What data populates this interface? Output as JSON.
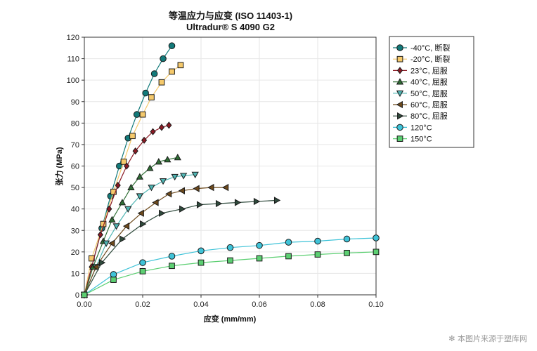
{
  "chart_data": {
    "type": "line",
    "title": "等温应力与应变 (ISO 11403-1)",
    "subtitle": "Ultradur® S 4090 G2",
    "xlabel": "应变 (mm/mm)",
    "ylabel": "张力 (MPa)",
    "xlim": [
      0,
      0.1
    ],
    "ylim": [
      0,
      120
    ],
    "xticks": [
      "0.00",
      "0.02",
      "0.04",
      "0.06",
      "0.08",
      "0.10"
    ],
    "yticks": [
      "0",
      "10",
      "20",
      "30",
      "40",
      "50",
      "60",
      "70",
      "80",
      "90",
      "100",
      "110",
      "120"
    ],
    "grid": true,
    "legend_position": "right",
    "series": [
      {
        "name": "-40°C, 断裂",
        "color": "#127a7a",
        "marker": "circle",
        "x": [
          0,
          0.006,
          0.009,
          0.012,
          0.015,
          0.018,
          0.021,
          0.024,
          0.027,
          0.03
        ],
        "y": [
          0,
          31,
          46,
          60,
          73,
          84,
          94,
          103,
          110,
          116
        ]
      },
      {
        "name": "-20°C, 断裂",
        "color": "#f5c96b",
        "marker": "square",
        "x": [
          0,
          0.0025,
          0.0065,
          0.01,
          0.0135,
          0.0165,
          0.02,
          0.023,
          0.0265,
          0.03,
          0.033
        ],
        "y": [
          0,
          17,
          33,
          48,
          62,
          74,
          84,
          92,
          99,
          104,
          107
        ]
      },
      {
        "name": "23°C, 屈服",
        "color": "#8b1a24",
        "marker": "diamond",
        "x": [
          0,
          0.0025,
          0.0055,
          0.0085,
          0.0115,
          0.0145,
          0.0175,
          0.0205,
          0.0235,
          0.0265,
          0.029
        ],
        "y": [
          0,
          13,
          28,
          40,
          51,
          60,
          67,
          72,
          76,
          78,
          79
        ]
      },
      {
        "name": "40°C, 屈服",
        "color": "#2f6e35",
        "marker": "triangle-up",
        "x": [
          0,
          0.003,
          0.0065,
          0.0095,
          0.013,
          0.016,
          0.019,
          0.0225,
          0.0255,
          0.0285,
          0.032
        ],
        "y": [
          0,
          13,
          25,
          35,
          43,
          50,
          55,
          59,
          62,
          63,
          64
        ]
      },
      {
        "name": "50°C, 屈服",
        "color": "#4fb5b3",
        "marker": "triangle-down",
        "x": [
          0,
          0.004,
          0.0075,
          0.011,
          0.015,
          0.019,
          0.023,
          0.027,
          0.031,
          0.034,
          0.038
        ],
        "y": [
          0,
          13,
          24,
          32,
          40,
          46,
          50,
          53,
          55,
          55.5,
          56
        ]
      },
      {
        "name": "60°C, 屈服",
        "color": "#6e4a1c",
        "marker": "triangle-left",
        "x": [
          0,
          0.004,
          0.0095,
          0.0145,
          0.0195,
          0.0245,
          0.029,
          0.0335,
          0.0385,
          0.0435,
          0.0485
        ],
        "y": [
          0,
          13,
          24,
          32,
          38,
          43,
          47,
          48.5,
          49.5,
          50,
          50
        ]
      },
      {
        "name": "80°C, 屈服",
        "color": "#2f4a3c",
        "marker": "triangle-right",
        "x": [
          0,
          0.006,
          0.013,
          0.02,
          0.0265,
          0.0335,
          0.0395,
          0.046,
          0.0525,
          0.059,
          0.066
        ],
        "y": [
          0,
          15,
          26,
          33,
          38,
          40,
          42,
          42.5,
          43,
          43.5,
          44
        ]
      },
      {
        "name": "120°C",
        "color": "#3fc3d8",
        "marker": "circle",
        "x": [
          0,
          0.01,
          0.02,
          0.03,
          0.04,
          0.05,
          0.06,
          0.07,
          0.08,
          0.09,
          0.1
        ],
        "y": [
          0,
          9.5,
          15,
          18,
          20.5,
          22,
          23,
          24.5,
          25,
          26,
          26.5
        ]
      },
      {
        "name": "150°C",
        "color": "#5ccf72",
        "marker": "square",
        "x": [
          0,
          0.01,
          0.02,
          0.03,
          0.04,
          0.05,
          0.06,
          0.07,
          0.08,
          0.09,
          0.1
        ],
        "y": [
          0,
          7,
          11,
          13.5,
          15,
          16,
          17,
          18,
          18.8,
          19.5,
          20
        ]
      }
    ]
  },
  "watermark": "本图片来源于塑库网"
}
